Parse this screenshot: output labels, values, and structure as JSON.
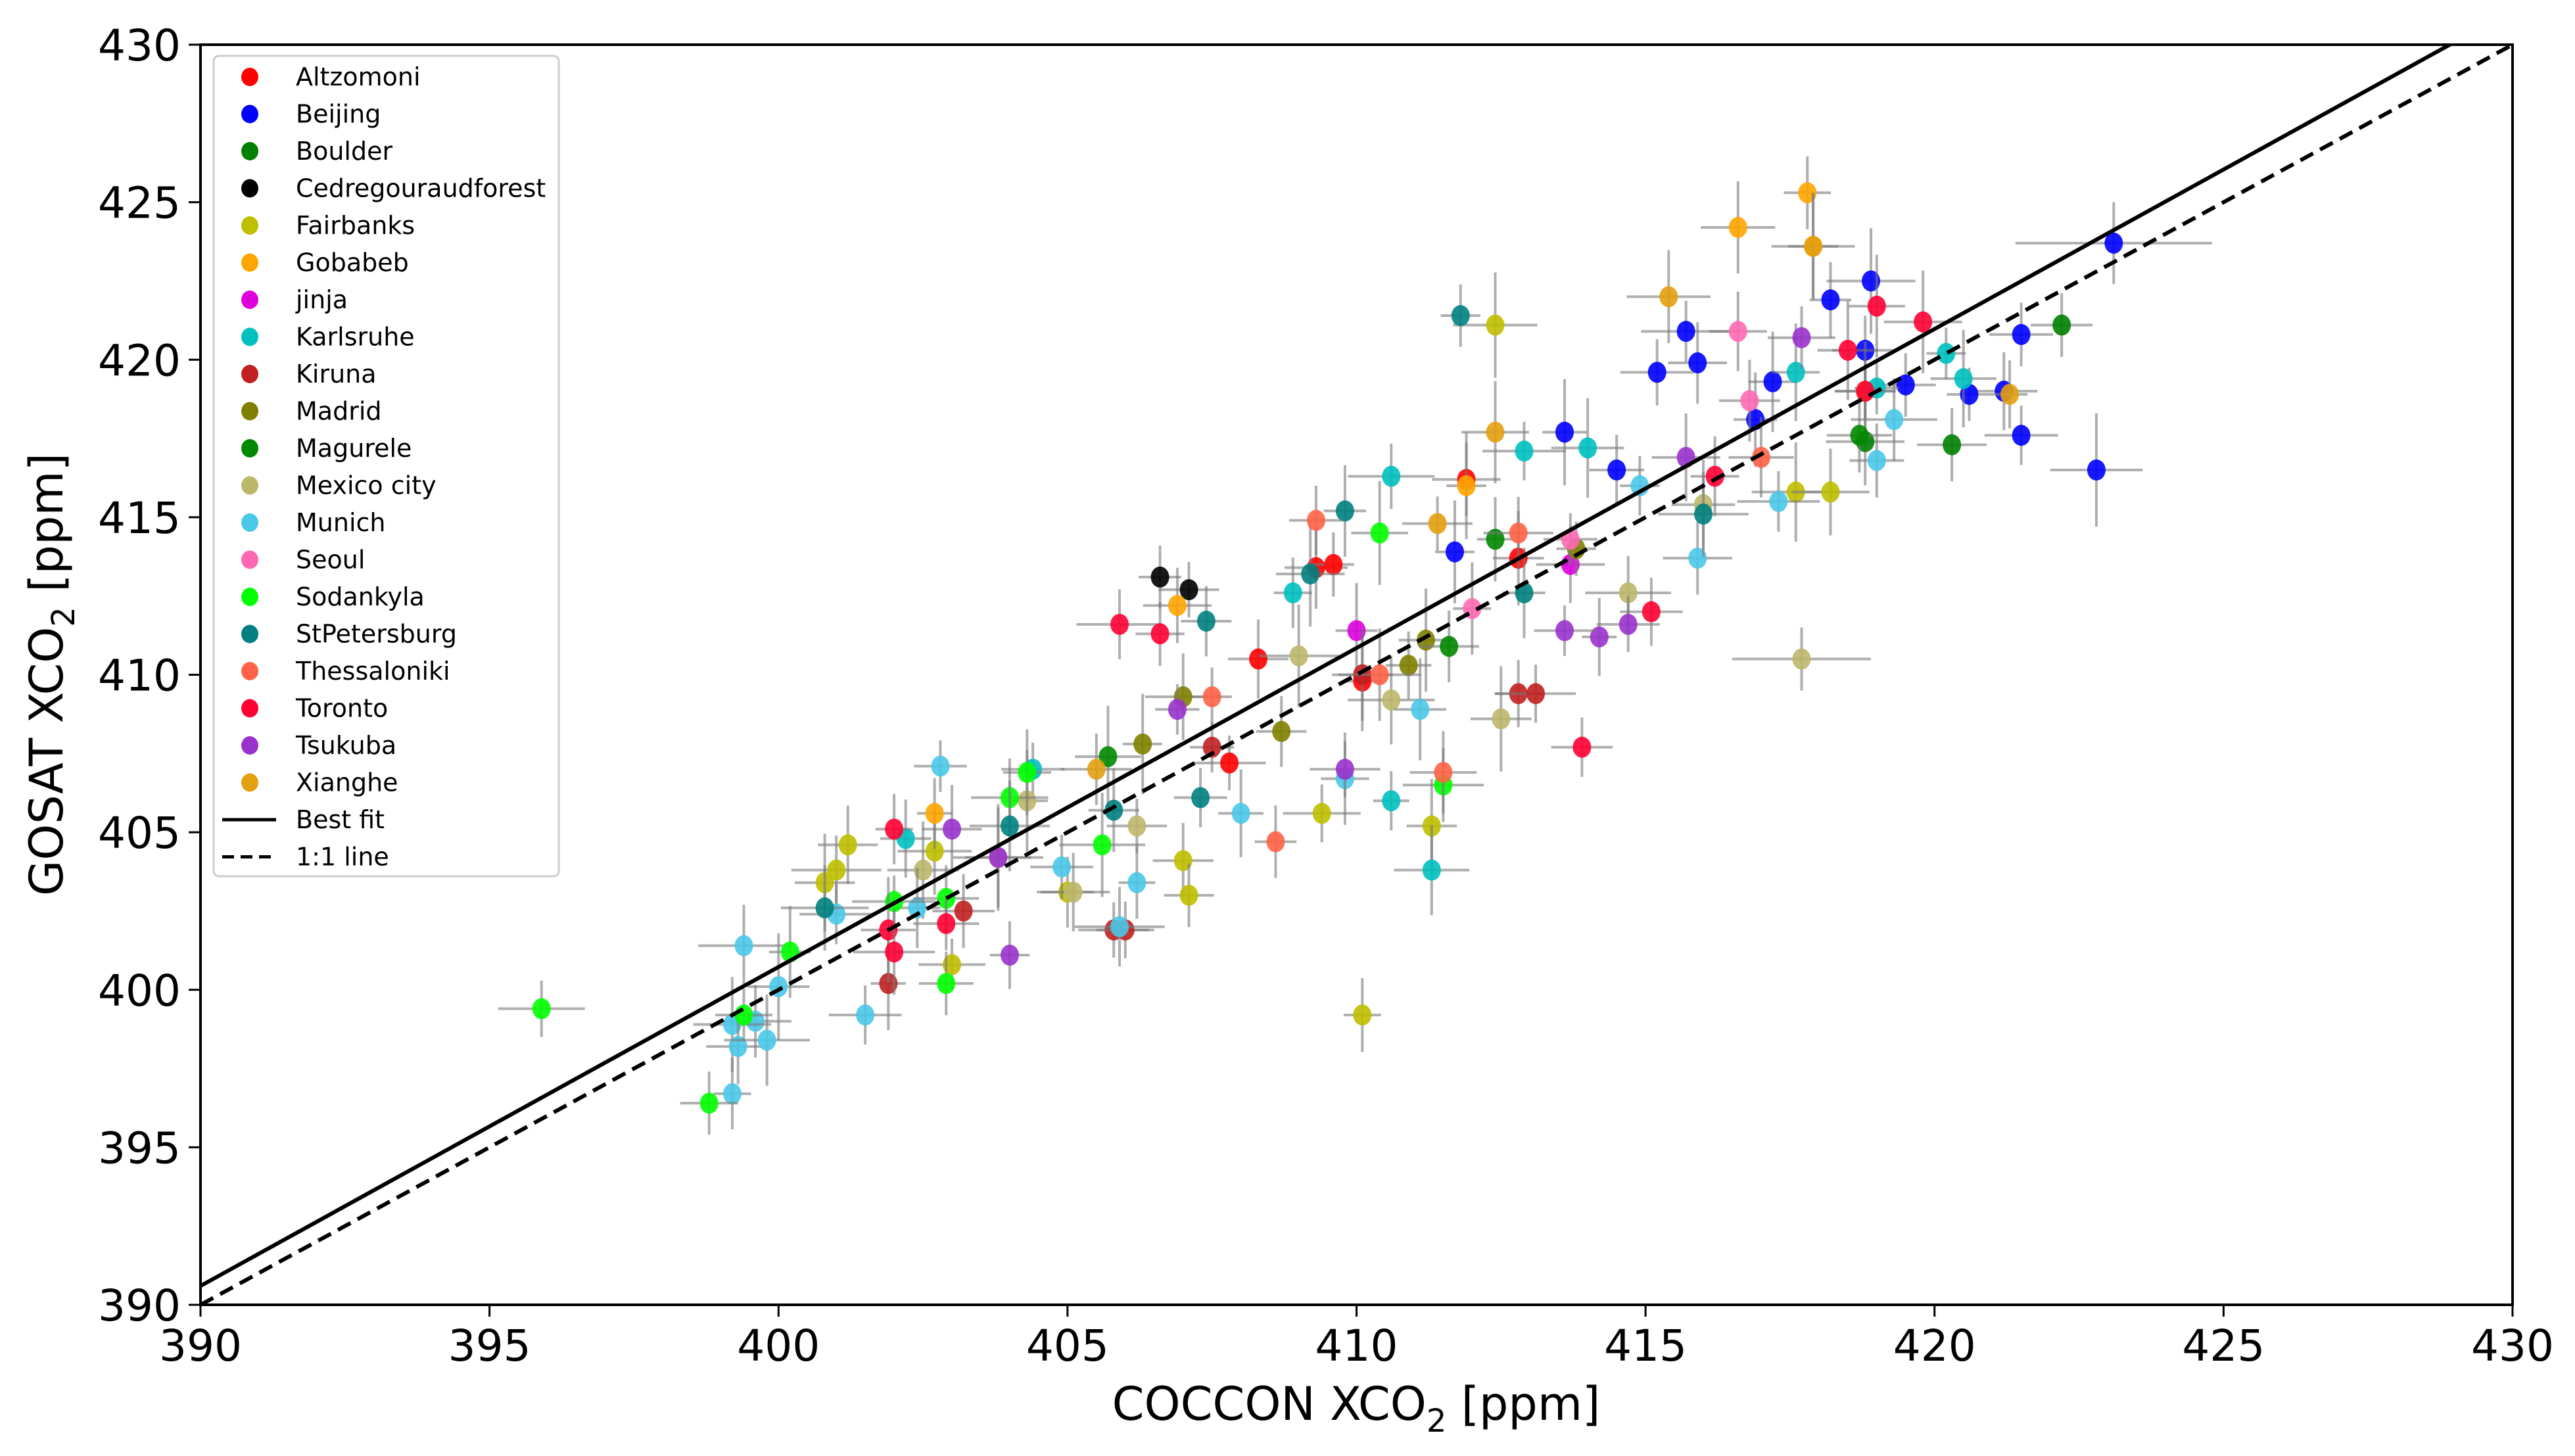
{
  "chart_data": {
    "type": "scatter",
    "title": "",
    "xlabel": "COCCON  XCO2 [ppm]",
    "ylabel": "GOSAT  XCO2 [ppm]",
    "xlabel_parts": {
      "pre": "COCCON  XCO",
      "sub": "2",
      "post": " [ppm]"
    },
    "ylabel_parts": {
      "pre": "GOSAT  XCO",
      "sub": "2",
      "post": " [ppm]"
    },
    "xlim": [
      390,
      430
    ],
    "ylim": [
      390,
      430
    ],
    "xticks": [
      390,
      395,
      400,
      405,
      410,
      415,
      420,
      425,
      430
    ],
    "yticks": [
      390,
      395,
      400,
      405,
      410,
      415,
      420,
      425,
      430
    ],
    "grid": false,
    "legend_position": "upper left",
    "lines": [
      {
        "name": "Best fit",
        "style": "solid",
        "color": "#000000",
        "points": [
          [
            390,
            390.6
          ],
          [
            430,
            431.1
          ]
        ]
      },
      {
        "name": "1:1 line",
        "style": "dashed",
        "color": "#000000",
        "points": [
          [
            390,
            390
          ],
          [
            430,
            430
          ]
        ]
      }
    ],
    "series": [
      {
        "name": "Altzomoni",
        "color": "#ff0000",
        "points": [
          [
            409.3,
            413.4
          ],
          [
            409.6,
            413.5
          ],
          [
            408.3,
            410.5
          ],
          [
            410.1,
            409.8
          ],
          [
            411.9,
            416.2
          ],
          [
            412.8,
            413.7
          ],
          [
            407.8,
            407.2
          ]
        ]
      },
      {
        "name": "Beijing",
        "color": "#0000ff",
        "points": [
          [
            423.1,
            423.7,
            1.7,
            1.3
          ],
          [
            422.8,
            416.5,
            0.8,
            1.8
          ],
          [
            421.5,
            420.8
          ],
          [
            421.5,
            417.6
          ],
          [
            421.2,
            419.0
          ],
          [
            420.6,
            418.9
          ],
          [
            418.9,
            422.5
          ],
          [
            418.2,
            421.9
          ],
          [
            415.7,
            420.9
          ],
          [
            415.9,
            419.9
          ],
          [
            415.2,
            419.6
          ],
          [
            413.6,
            417.7
          ],
          [
            419.5,
            419.2
          ],
          [
            418.8,
            420.3
          ],
          [
            416.9,
            418.1
          ],
          [
            414.5,
            416.5
          ],
          [
            411.7,
            413.9
          ],
          [
            417.2,
            419.3
          ]
        ]
      },
      {
        "name": "Boulder",
        "color": "#008000",
        "points": [
          [
            422.2,
            421.1
          ],
          [
            420.3,
            417.3
          ],
          [
            418.8,
            417.4
          ]
        ]
      },
      {
        "name": "Cedregouraudforest",
        "color": "#000000",
        "points": [
          [
            406.6,
            413.1
          ],
          [
            407.1,
            412.7
          ]
        ]
      },
      {
        "name": "Fairbanks",
        "color": "#bfbf00",
        "points": [
          [
            410.1,
            399.2
          ],
          [
            402.7,
            404.4
          ],
          [
            401.0,
            403.8
          ],
          [
            401.2,
            404.6
          ],
          [
            400.8,
            403.4
          ],
          [
            407.0,
            404.1
          ],
          [
            407.1,
            403.0
          ],
          [
            409.4,
            405.6
          ],
          [
            411.3,
            405.2
          ],
          [
            412.4,
            421.1
          ],
          [
            417.6,
            415.8
          ],
          [
            418.2,
            415.8
          ],
          [
            403.0,
            400.8
          ],
          [
            405.0,
            403.1
          ]
        ]
      },
      {
        "name": "Gobabeb",
        "color": "#ffa500",
        "points": [
          [
            417.8,
            425.3
          ],
          [
            416.6,
            424.2
          ],
          [
            417.9,
            423.6
          ],
          [
            402.7,
            405.6
          ],
          [
            406.9,
            412.2
          ],
          [
            411.9,
            416.0
          ],
          [
            418.8,
            419.0
          ]
        ]
      },
      {
        "name": "jinja",
        "color": "#dd00dd",
        "points": [
          [
            413.7,
            413.5
          ],
          [
            410.0,
            411.4
          ]
        ]
      },
      {
        "name": "Karlsruhe",
        "color": "#00c0c0",
        "points": [
          [
            410.6,
            416.3
          ],
          [
            410.6,
            406.0
          ],
          [
            411.3,
            403.8
          ],
          [
            414.0,
            417.2
          ],
          [
            417.6,
            419.6
          ],
          [
            419.0,
            419.1
          ],
          [
            420.2,
            420.2
          ],
          [
            420.5,
            419.4
          ],
          [
            412.9,
            417.1
          ],
          [
            404.4,
            407.0
          ],
          [
            402.2,
            404.8
          ],
          [
            408.9,
            412.6
          ]
        ]
      },
      {
        "name": "Kiruna",
        "color": "#c02020",
        "points": [
          [
            412.8,
            409.4
          ],
          [
            413.1,
            409.4
          ],
          [
            407.5,
            407.7
          ],
          [
            405.8,
            401.9
          ],
          [
            406.0,
            401.9
          ],
          [
            403.2,
            402.5
          ],
          [
            401.9,
            400.2
          ],
          [
            410.1,
            410.0
          ]
        ]
      },
      {
        "name": "Madrid",
        "color": "#808000",
        "points": [
          [
            411.2,
            411.1
          ],
          [
            407.0,
            409.3
          ],
          [
            408.7,
            408.2
          ],
          [
            406.3,
            407.8
          ],
          [
            413.8,
            414.0
          ],
          [
            410.9,
            410.3
          ]
        ]
      },
      {
        "name": "Magurele",
        "color": "#008800",
        "points": [
          [
            412.4,
            414.3
          ],
          [
            411.6,
            410.9
          ],
          [
            405.7,
            407.4
          ],
          [
            418.7,
            417.6
          ]
        ]
      },
      {
        "name": "Mexico city",
        "color": "#bdb76b",
        "points": [
          [
            417.7,
            410.5,
            1.2,
            1.0
          ],
          [
            404.3,
            406.0
          ],
          [
            405.1,
            403.1
          ],
          [
            410.6,
            409.2
          ],
          [
            412.5,
            408.6
          ],
          [
            414.7,
            412.6
          ],
          [
            416.0,
            415.4
          ],
          [
            409.0,
            410.6
          ],
          [
            403.8,
            404.2
          ],
          [
            402.5,
            403.8
          ],
          [
            406.2,
            405.2
          ]
        ]
      },
      {
        "name": "Munich",
        "color": "#4ac8e8",
        "points": [
          [
            399.4,
            401.4
          ],
          [
            399.6,
            399.0
          ],
          [
            399.2,
            398.9
          ],
          [
            399.3,
            398.2
          ],
          [
            399.8,
            398.4
          ],
          [
            399.2,
            396.7
          ],
          [
            400.0,
            400.1
          ],
          [
            401.5,
            399.2
          ],
          [
            401.0,
            402.4
          ],
          [
            402.4,
            402.6
          ],
          [
            402.8,
            407.1
          ],
          [
            405.9,
            402.0
          ],
          [
            406.2,
            403.4
          ],
          [
            408.0,
            405.6
          ],
          [
            409.8,
            406.7
          ],
          [
            411.1,
            408.9
          ],
          [
            415.9,
            413.7
          ],
          [
            417.3,
            415.5
          ],
          [
            419.0,
            416.8
          ],
          [
            419.3,
            418.1
          ],
          [
            414.9,
            416.0
          ],
          [
            404.9,
            403.9
          ]
        ]
      },
      {
        "name": "Seoul",
        "color": "#ff69b4",
        "points": [
          [
            416.6,
            420.9
          ],
          [
            413.7,
            414.3
          ],
          [
            412.0,
            412.1
          ],
          [
            416.8,
            418.7
          ]
        ]
      },
      {
        "name": "Sodankyla",
        "color": "#00ff00",
        "points": [
          [
            395.9,
            399.4
          ],
          [
            398.8,
            396.4
          ],
          [
            399.4,
            399.2
          ],
          [
            400.2,
            401.2
          ],
          [
            402.0,
            402.8
          ],
          [
            402.9,
            402.9
          ],
          [
            402.9,
            400.2
          ],
          [
            404.0,
            406.1
          ],
          [
            404.3,
            406.9
          ],
          [
            405.6,
            404.6
          ],
          [
            410.4,
            414.5
          ],
          [
            411.5,
            406.5
          ]
        ]
      },
      {
        "name": "StPetersburg",
        "color": "#008080",
        "points": [
          [
            411.8,
            421.4
          ],
          [
            409.8,
            415.2
          ],
          [
            409.2,
            413.2
          ],
          [
            407.4,
            411.7
          ],
          [
            407.3,
            406.1
          ],
          [
            400.8,
            402.6
          ],
          [
            404.0,
            405.2
          ],
          [
            405.8,
            405.7
          ],
          [
            412.9,
            412.6
          ],
          [
            416.0,
            415.1
          ]
        ]
      },
      {
        "name": "Thessaloniki",
        "color": "#ff6347",
        "points": [
          [
            409.3,
            414.9
          ],
          [
            411.5,
            406.9
          ],
          [
            408.6,
            404.7
          ],
          [
            410.4,
            410.0
          ],
          [
            417.0,
            416.9
          ],
          [
            412.8,
            414.5
          ],
          [
            407.5,
            409.3
          ]
        ]
      },
      {
        "name": "Toronto",
        "color": "#ff0033",
        "points": [
          [
            419.0,
            421.7
          ],
          [
            419.8,
            421.2
          ],
          [
            418.5,
            420.3
          ],
          [
            418.8,
            419.0
          ],
          [
            405.9,
            411.6
          ],
          [
            406.6,
            411.3
          ],
          [
            402.0,
            405.1
          ],
          [
            401.9,
            401.9
          ],
          [
            402.0,
            401.2
          ],
          [
            402.9,
            402.1
          ],
          [
            413.9,
            407.7
          ],
          [
            415.1,
            412.0
          ],
          [
            416.2,
            416.3
          ]
        ]
      },
      {
        "name": "Tsukuba",
        "color": "#9932cc",
        "points": [
          [
            417.7,
            420.7
          ],
          [
            415.7,
            416.9
          ],
          [
            414.7,
            411.6
          ],
          [
            414.2,
            411.2
          ],
          [
            413.6,
            411.4
          ],
          [
            409.8,
            407.0
          ],
          [
            404.0,
            401.1
          ],
          [
            403.0,
            405.1
          ],
          [
            403.8,
            404.2
          ],
          [
            406.9,
            408.9
          ]
        ]
      },
      {
        "name": "Xianghe",
        "color": "#e3a010",
        "points": [
          [
            417.9,
            423.6
          ],
          [
            415.4,
            422.0
          ],
          [
            412.4,
            417.7
          ],
          [
            421.3,
            418.9
          ],
          [
            411.4,
            414.8
          ],
          [
            405.5,
            407.0
          ]
        ]
      }
    ]
  },
  "legend": {
    "items": [
      {
        "label": "Altzomoni",
        "color": "#ff0000",
        "kind": "marker"
      },
      {
        "label": "Beijing",
        "color": "#0000ff",
        "kind": "marker"
      },
      {
        "label": "Boulder",
        "color": "#008000",
        "kind": "marker"
      },
      {
        "label": "Cedregouraudforest",
        "color": "#000000",
        "kind": "marker"
      },
      {
        "label": "Fairbanks",
        "color": "#bfbf00",
        "kind": "marker"
      },
      {
        "label": "Gobabeb",
        "color": "#ffa500",
        "kind": "marker"
      },
      {
        "label": "jinja",
        "color": "#dd00dd",
        "kind": "marker"
      },
      {
        "label": "Karlsruhe",
        "color": "#00c0c0",
        "kind": "marker"
      },
      {
        "label": "Kiruna",
        "color": "#c02020",
        "kind": "marker"
      },
      {
        "label": "Madrid",
        "color": "#808000",
        "kind": "marker"
      },
      {
        "label": "Magurele",
        "color": "#008800",
        "kind": "marker"
      },
      {
        "label": "Mexico city",
        "color": "#bdb76b",
        "kind": "marker"
      },
      {
        "label": "Munich",
        "color": "#4ac8e8",
        "kind": "marker"
      },
      {
        "label": "Seoul",
        "color": "#ff69b4",
        "kind": "marker"
      },
      {
        "label": "Sodankyla",
        "color": "#00ff00",
        "kind": "marker"
      },
      {
        "label": "StPetersburg",
        "color": "#008080",
        "kind": "marker"
      },
      {
        "label": "Thessaloniki",
        "color": "#ff6347",
        "kind": "marker"
      },
      {
        "label": "Toronto",
        "color": "#ff0033",
        "kind": "marker"
      },
      {
        "label": "Tsukuba",
        "color": "#9932cc",
        "kind": "marker"
      },
      {
        "label": "Xianghe",
        "color": "#e3a010",
        "kind": "marker"
      },
      {
        "label": "Best fit",
        "color": "#000000",
        "kind": "solid"
      },
      {
        "label": "1:1 line",
        "color": "#000000",
        "kind": "dashed"
      }
    ]
  }
}
